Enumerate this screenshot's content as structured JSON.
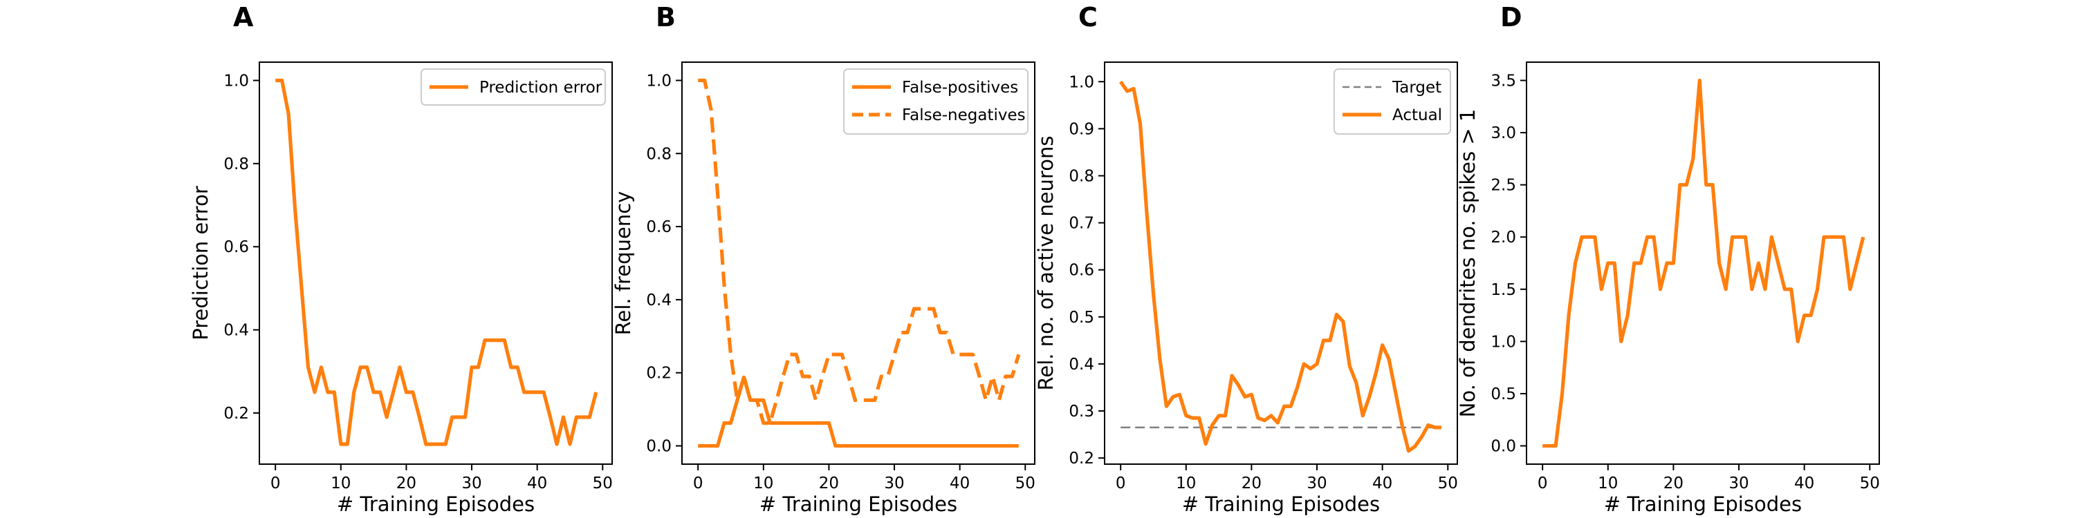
{
  "colors": {
    "series": "#ff7f0e",
    "target": "#808080",
    "axis": "#000000",
    "legend_border": "#cccccc"
  },
  "chart_data": [
    {
      "type": "line",
      "panel_label": "A",
      "xlabel": "# Training Episodes",
      "ylabel": "Prediction error",
      "xlim": [
        -2.45,
        51.45
      ],
      "ylim": [
        0.077,
        1.044
      ],
      "xticks": [
        0,
        10,
        20,
        30,
        40,
        50
      ],
      "xtick_labels": [
        "0",
        "10",
        "20",
        "30",
        "40",
        "50"
      ],
      "yticks": [
        0.2,
        0.4,
        0.6,
        0.8,
        1.0
      ],
      "ytick_labels": [
        "0.2",
        "0.4",
        "0.6",
        "0.8",
        "1.0"
      ],
      "legend": "top-right",
      "series": [
        {
          "name": "Prediction error",
          "style": "solid",
          "values": [
            1.0,
            1.0,
            0.92,
            0.69,
            0.5,
            0.31,
            0.25,
            0.31,
            0.25,
            0.25,
            0.125,
            0.125,
            0.25,
            0.31,
            0.31,
            0.25,
            0.25,
            0.19,
            0.25,
            0.31,
            0.25,
            0.25,
            0.19,
            0.125,
            0.125,
            0.125,
            0.125,
            0.19,
            0.19,
            0.19,
            0.31,
            0.31,
            0.375,
            0.375,
            0.375,
            0.375,
            0.31,
            0.31,
            0.25,
            0.25,
            0.25,
            0.25,
            0.19,
            0.125,
            0.19,
            0.125,
            0.19,
            0.19,
            0.19,
            0.25
          ]
        }
      ]
    },
    {
      "type": "line",
      "panel_label": "B",
      "xlabel": "# Training Episodes",
      "ylabel": "Rel. frequency",
      "xlim": [
        -2.45,
        51.45
      ],
      "ylim": [
        -0.05,
        1.05
      ],
      "xticks": [
        0,
        10,
        20,
        30,
        40,
        50
      ],
      "xtick_labels": [
        "0",
        "10",
        "20",
        "30",
        "40",
        "50"
      ],
      "yticks": [
        0.0,
        0.2,
        0.4,
        0.6,
        0.8,
        1.0
      ],
      "ytick_labels": [
        "0.0",
        "0.2",
        "0.4",
        "0.6",
        "0.8",
        "1.0"
      ],
      "legend": "top-right",
      "series": [
        {
          "name": "False-positives",
          "style": "solid",
          "values": [
            0,
            0,
            0,
            0,
            0.0625,
            0.0625,
            0.125,
            0.1875,
            0.125,
            0.125,
            0.125,
            0.0625,
            0.0625,
            0.0625,
            0.0625,
            0.0625,
            0.0625,
            0.0625,
            0.0625,
            0.0625,
            0.0625,
            0,
            0,
            0,
            0,
            0,
            0,
            0,
            0,
            0,
            0,
            0,
            0,
            0,
            0,
            0,
            0,
            0,
            0,
            0,
            0,
            0,
            0,
            0,
            0,
            0,
            0,
            0,
            0,
            0
          ]
        },
        {
          "name": "False-negatives",
          "style": "dashed",
          "values": [
            1.0,
            1.0,
            0.92,
            0.69,
            0.44,
            0.25,
            0.125,
            0.19,
            0.125,
            0.125,
            0.0625,
            0.0625,
            0.125,
            0.19,
            0.25,
            0.25,
            0.19,
            0.19,
            0.125,
            0.19,
            0.25,
            0.25,
            0.25,
            0.19,
            0.125,
            0.125,
            0.125,
            0.125,
            0.19,
            0.19,
            0.25,
            0.31,
            0.31,
            0.375,
            0.375,
            0.375,
            0.375,
            0.31,
            0.31,
            0.25,
            0.25,
            0.25,
            0.25,
            0.19,
            0.125,
            0.19,
            0.125,
            0.19,
            0.19,
            0.25
          ]
        }
      ]
    },
    {
      "type": "line",
      "panel_label": "C",
      "xlabel": "# Training Episodes",
      "ylabel": "Rel. no. of active neurons",
      "xlim": [
        -2.45,
        51.45
      ],
      "ylim": [
        0.187,
        1.0415
      ],
      "xticks": [
        0,
        10,
        20,
        30,
        40,
        50
      ],
      "xtick_labels": [
        "0",
        "10",
        "20",
        "30",
        "40",
        "50"
      ],
      "yticks": [
        0.2,
        0.3,
        0.4,
        0.5,
        0.6,
        0.7,
        0.8,
        0.9,
        1.0
      ],
      "ytick_labels": [
        "0.2",
        "0.3",
        "0.4",
        "0.5",
        "0.6",
        "0.7",
        "0.8",
        "0.9",
        "1.0"
      ],
      "legend": "top-right",
      "series": [
        {
          "name": "Target",
          "style": "dashed-thin",
          "values": [
            0.265,
            0.265,
            0.265,
            0.265,
            0.265,
            0.265,
            0.265,
            0.265,
            0.265,
            0.265,
            0.265,
            0.265,
            0.265,
            0.265,
            0.265,
            0.265,
            0.265,
            0.265,
            0.265,
            0.265,
            0.265,
            0.265,
            0.265,
            0.265,
            0.265,
            0.265,
            0.265,
            0.265,
            0.265,
            0.265,
            0.265,
            0.265,
            0.265,
            0.265,
            0.265,
            0.265,
            0.265,
            0.265,
            0.265,
            0.265,
            0.265,
            0.265,
            0.265,
            0.265,
            0.265,
            0.265,
            0.265,
            0.265,
            0.265,
            0.265
          ]
        },
        {
          "name": "Actual",
          "style": "solid",
          "values": [
            1.0,
            0.98,
            0.985,
            0.91,
            0.72,
            0.55,
            0.41,
            0.31,
            0.33,
            0.335,
            0.29,
            0.285,
            0.285,
            0.23,
            0.27,
            0.29,
            0.29,
            0.375,
            0.355,
            0.33,
            0.335,
            0.285,
            0.28,
            0.29,
            0.275,
            0.31,
            0.31,
            0.35,
            0.4,
            0.39,
            0.4,
            0.45,
            0.45,
            0.505,
            0.49,
            0.395,
            0.36,
            0.29,
            0.33,
            0.38,
            0.44,
            0.41,
            0.34,
            0.27,
            0.215,
            0.225,
            0.245,
            0.27,
            0.265,
            0.265
          ]
        }
      ]
    },
    {
      "type": "line",
      "panel_label": "D",
      "xlabel": "# Training Episodes",
      "ylabel": "No. of dendrites no. spikes > 1",
      "xlim": [
        -2.45,
        51.45
      ],
      "ylim": [
        -0.175,
        3.675
      ],
      "xticks": [
        0,
        10,
        20,
        30,
        40,
        50
      ],
      "xtick_labels": [
        "0",
        "10",
        "20",
        "30",
        "40",
        "50"
      ],
      "yticks": [
        0.0,
        0.5,
        1.0,
        1.5,
        2.0,
        2.5,
        3.0,
        3.5
      ],
      "ytick_labels": [
        "0.0",
        "0.5",
        "1.0",
        "1.5",
        "2.0",
        "2.5",
        "3.0",
        "3.5"
      ],
      "series": [
        {
          "style": "solid",
          "values": [
            0,
            0,
            0,
            0.5,
            1.25,
            1.75,
            2.0,
            2.0,
            2.0,
            1.5,
            1.75,
            1.75,
            1.0,
            1.25,
            1.75,
            1.75,
            2.0,
            2.0,
            1.5,
            1.75,
            1.75,
            2.5,
            2.5,
            2.75,
            3.5,
            2.5,
            2.5,
            1.75,
            1.5,
            2.0,
            2.0,
            2.0,
            1.5,
            1.75,
            1.5,
            2.0,
            1.75,
            1.5,
            1.5,
            1.0,
            1.25,
            1.25,
            1.5,
            2.0,
            2.0,
            2.0,
            2.0,
            1.5,
            1.75,
            2.0
          ]
        }
      ]
    }
  ]
}
